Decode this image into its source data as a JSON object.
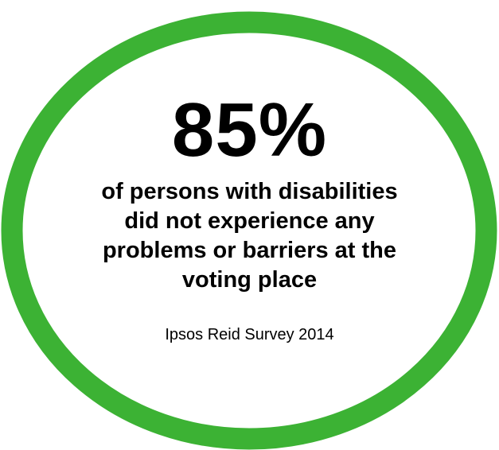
{
  "infographic": {
    "statistic": "85%",
    "statement_lines": [
      "of persons with disabilities",
      "did not experience any",
      "problems or barriers at the",
      "voting place"
    ],
    "source": "Ipsos Reid Survey 2014"
  },
  "colors": {
    "ring": "#3cb234",
    "text": "#000000",
    "background": "#ffffff"
  }
}
